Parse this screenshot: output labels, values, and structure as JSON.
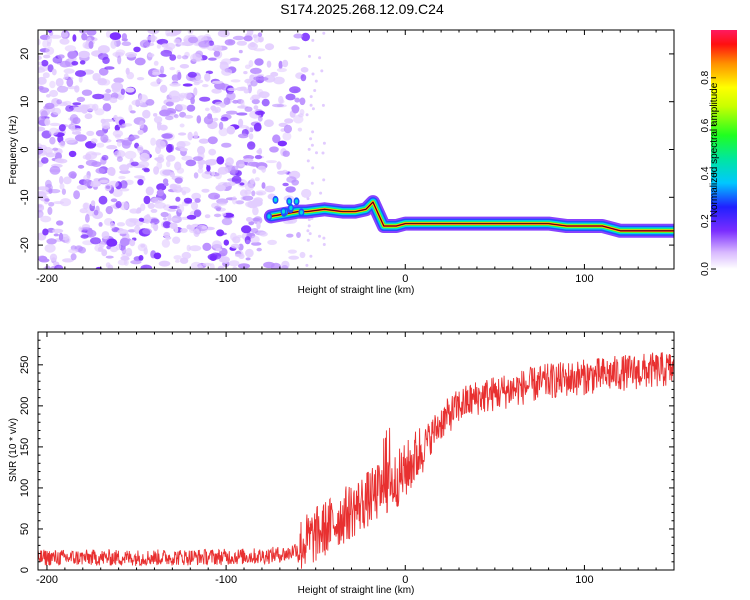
{
  "title": "S174.2025.268.12.09.C24",
  "chart_data": [
    {
      "type": "heatmap",
      "xlabel": "Height of straight line (km)",
      "ylabel": "Frequency (Hz)",
      "xlim": [
        -205,
        150
      ],
      "ylim": [
        -25,
        25
      ],
      "xticks": [
        -200,
        -100,
        0,
        100
      ],
      "yticks": [
        -20,
        -10,
        0,
        10,
        20
      ],
      "noise_region_x": [
        -205,
        -55
      ],
      "ridge": {
        "x": [
          -75,
          -60,
          -55,
          -45,
          -35,
          -28,
          -22,
          -18,
          -12,
          -5,
          0,
          20,
          40,
          60,
          80,
          90,
          100,
          110,
          120,
          130,
          140,
          150
        ],
        "y": [
          -14,
          -13,
          -13,
          -12.5,
          -13,
          -13,
          -12.5,
          -11,
          -16,
          -16,
          -15.5,
          -15.5,
          -15.5,
          -15.5,
          -15.5,
          -16,
          -16,
          -16,
          -17,
          -17,
          -17,
          -17
        ]
      },
      "colorbar": {
        "label": "Normalized spectral amplitude",
        "ticks": [
          0.0,
          0.2,
          0.4,
          0.6,
          0.8
        ],
        "range": [
          0,
          1
        ]
      }
    },
    {
      "type": "line",
      "xlabel": "Height of straight line (km)",
      "ylabel": "SNR (10 * v/v)",
      "xlim": [
        -205,
        150
      ],
      "ylim": [
        0,
        290
      ],
      "xticks": [
        -200,
        -100,
        0,
        100
      ],
      "yticks": [
        0,
        50,
        100,
        150,
        200,
        250
      ],
      "color": "#e83030",
      "trend": {
        "x": [
          -205,
          -150,
          -100,
          -80,
          -65,
          -55,
          -45,
          -35,
          -25,
          -15,
          -10,
          0,
          10,
          20,
          30,
          40,
          60,
          80,
          100,
          120,
          150
        ],
        "y": [
          15,
          15,
          16,
          17,
          20,
          35,
          50,
          65,
          80,
          95,
          100,
          120,
          150,
          180,
          200,
          210,
          220,
          230,
          235,
          240,
          245
        ]
      }
    }
  ]
}
